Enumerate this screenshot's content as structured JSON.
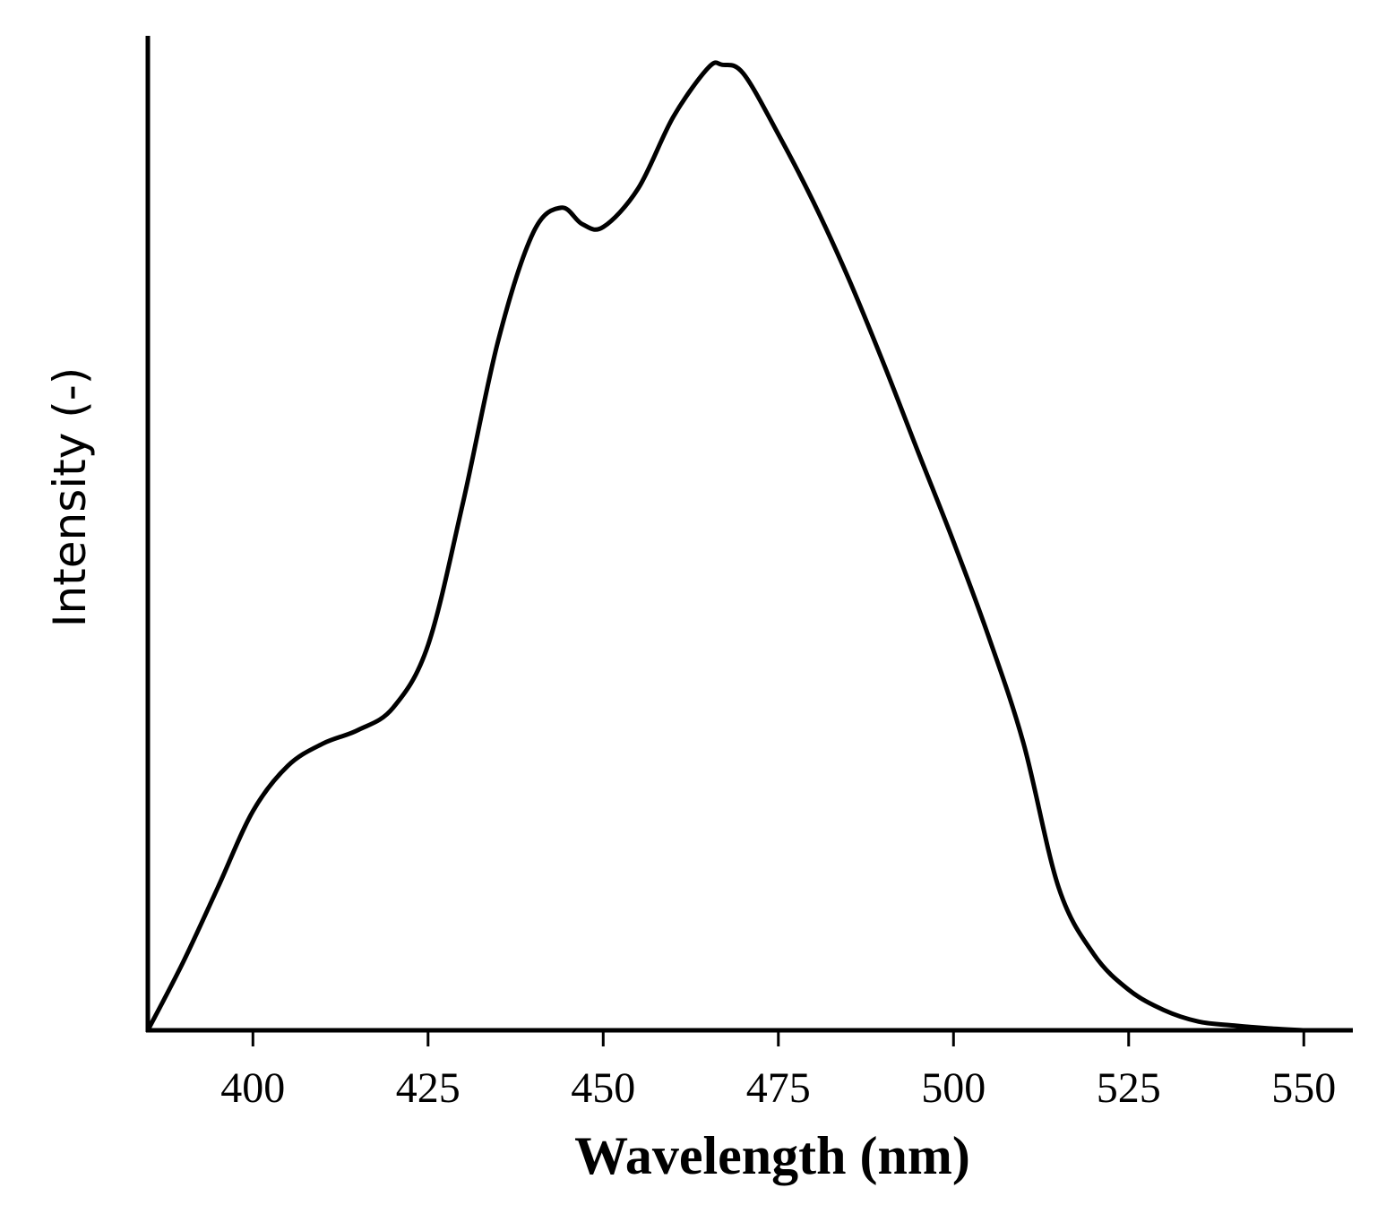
{
  "chart_data": {
    "type": "line",
    "x_label": "Wavelength (nm)",
    "y_label": "Intensity (-)",
    "xlim": [
      385,
      557
    ],
    "ylim": [
      0,
      1.03
    ],
    "xticks": [
      400,
      425,
      450,
      475,
      500,
      525,
      550
    ],
    "series": [
      {
        "color": "#000000",
        "x": [
          385,
          390,
          395,
          400,
          405,
          410,
          415,
          420,
          425,
          430,
          435,
          440,
          444,
          447,
          450,
          455,
          460,
          465,
          467,
          470,
          475,
          480,
          485,
          490,
          495,
          500,
          505,
          510,
          515,
          520,
          525,
          530,
          535,
          540,
          545,
          550
        ],
        "values": [
          0,
          0.07,
          0.148,
          0.227,
          0.274,
          0.297,
          0.311,
          0.334,
          0.399,
          0.547,
          0.714,
          0.826,
          0.852,
          0.835,
          0.832,
          0.872,
          0.946,
          0.997,
          1.0,
          0.991,
          0.928,
          0.858,
          0.779,
          0.691,
          0.598,
          0.506,
          0.408,
          0.297,
          0.148,
          0.079,
          0.042,
          0.021,
          0.009,
          0.005,
          0.002,
          0
        ]
      }
    ]
  }
}
